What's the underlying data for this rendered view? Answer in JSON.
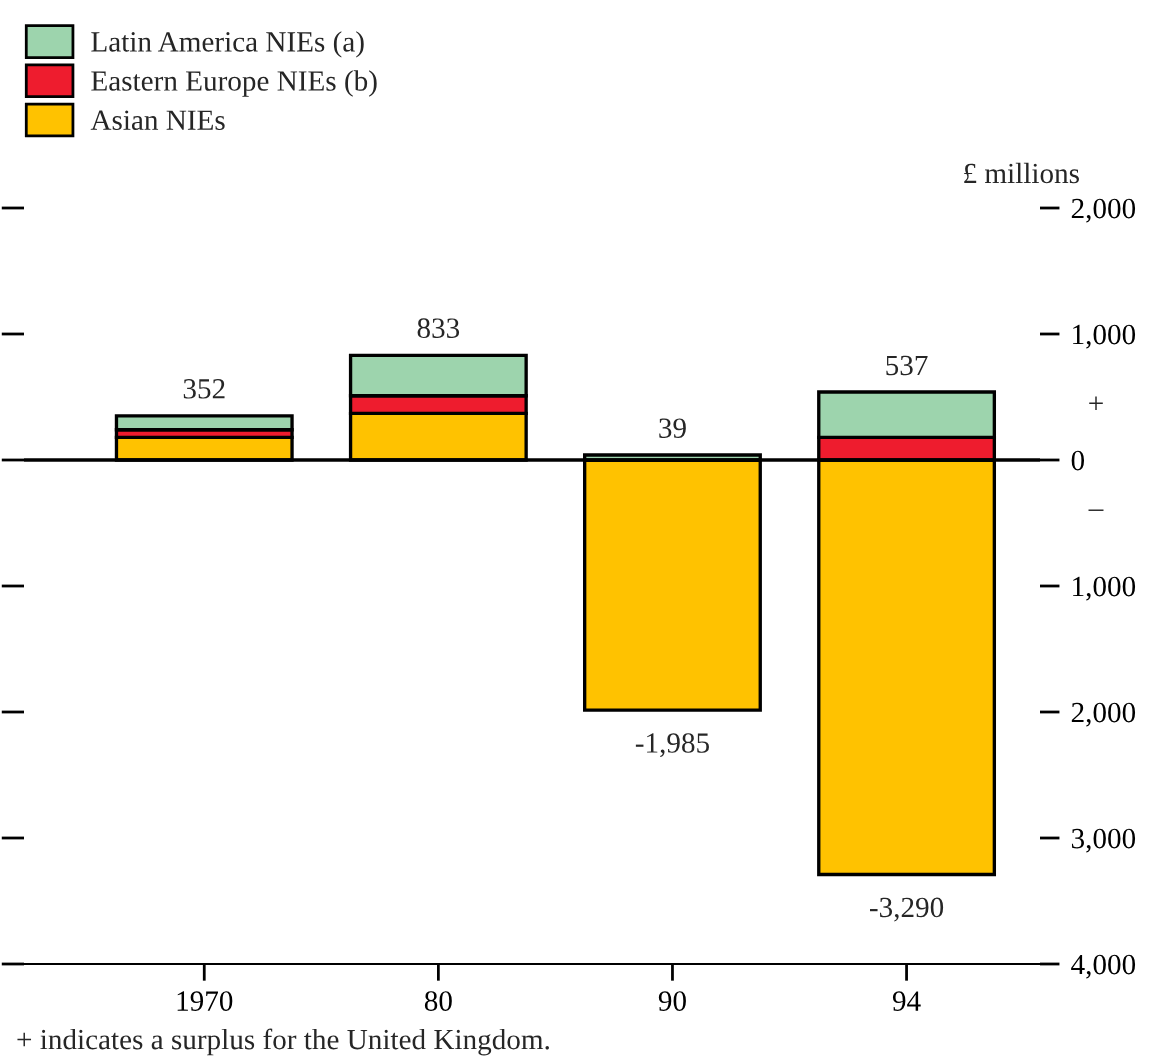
{
  "chart_data": {
    "type": "bar",
    "stacked": true,
    "categories": [
      "1970",
      "80",
      "90",
      "94"
    ],
    "series": [
      {
        "name": "Asian NIEs",
        "color": "#ffc200",
        "values": [
          180,
          370,
          -1985,
          -3290
        ],
        "value_labels": [
          null,
          null,
          "-1,985",
          "-3,290"
        ]
      },
      {
        "name": "Eastern Europe NIEs (b)",
        "color": "#ee1c2e",
        "values": [
          60,
          140,
          0,
          180
        ]
      },
      {
        "name": "Latin America NIEs (a)",
        "color": "#9dd4ad",
        "values": [
          110,
          320,
          40,
          360
        ]
      }
    ],
    "ylabel": "£ millions",
    "ylim": [
      -4000,
      2000
    ],
    "yticks": [
      {
        "value": 2000,
        "label": "2,000"
      },
      {
        "value": 1000,
        "label": "1,000"
      },
      0,
      {
        "value": -1000,
        "label": "1,000"
      },
      {
        "value": -2000,
        "label": "2,000"
      },
      {
        "value": -3000,
        "label": "3,000"
      },
      {
        "value": -4000,
        "label": "4,000"
      }
    ],
    "ref_lines": [
      {
        "axis": "y",
        "value": 0
      }
    ],
    "annotations": [
      {
        "text": "352",
        "x": "1970",
        "y": 352
      },
      {
        "text": "833",
        "x": "80",
        "y": 833
      },
      {
        "text": "39",
        "x": "90",
        "y": 39
      },
      {
        "text": "537",
        "x": "94",
        "y": 537
      },
      "+",
      "–",
      "+ indicates a surplus for the United Kingdom."
    ],
    "legend": "top left",
    "grid": false
  }
}
